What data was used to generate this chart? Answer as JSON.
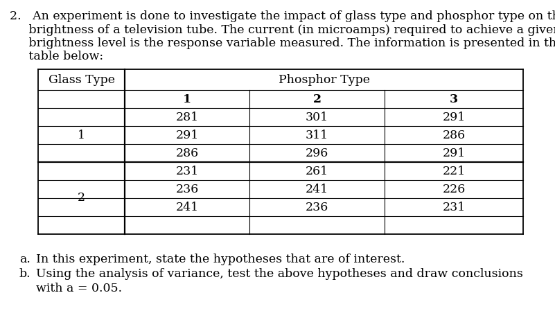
{
  "question_number": "2.",
  "para_lines": [
    "2.   An experiment is done to investigate the impact of glass type and phosphor type on the",
    "     brightness of a television tube. The current (in microamps) required to achieve a given",
    "     brightness level is the response variable measured. The information is presented in the",
    "     table below:"
  ],
  "table": {
    "col_header_left": "Glass Type",
    "col_header_center": "Phosphor Type",
    "phosphor_types": [
      "1",
      "2",
      "3"
    ],
    "glass_type_1": {
      "label": "1",
      "data": [
        [
          281,
          301,
          291
        ],
        [
          291,
          311,
          286
        ],
        [
          286,
          296,
          291
        ]
      ]
    },
    "glass_type_2": {
      "label": "2",
      "data": [
        [
          231,
          261,
          221
        ],
        [
          236,
          241,
          226
        ],
        [
          241,
          236,
          231
        ]
      ]
    }
  },
  "sub_a_label": "a.",
  "sub_a_text": "In this experiment, state the hypotheses that are of interest.",
  "sub_b_label": "b.",
  "sub_b_text": "Using the analysis of variance, test the above hypotheses and draw conclusions",
  "sub_b_text2": "with a = 0.05.",
  "bg_color": "#ffffff",
  "text_color": "#000000",
  "font_size": 12.5,
  "font_family": "serif"
}
